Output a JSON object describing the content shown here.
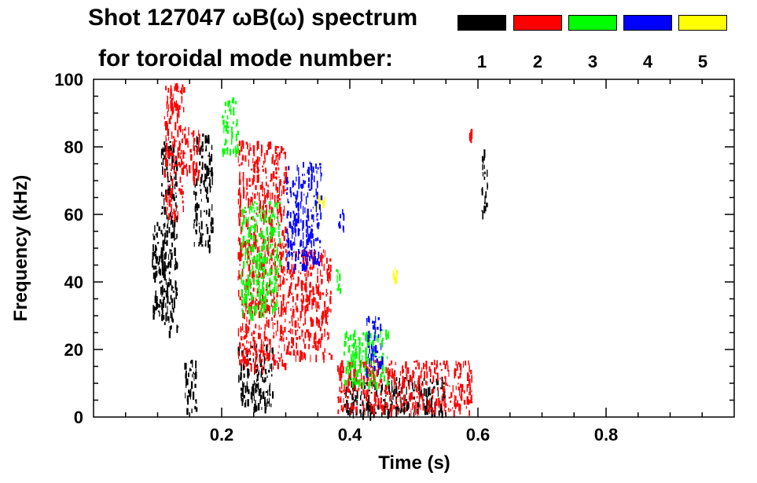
{
  "header": {
    "title_line1": "Shot 127047 ωB(ω) spectrum",
    "title_line2": "for toroidal mode number:"
  },
  "legend": [
    {
      "label": "1",
      "color": "#000000"
    },
    {
      "label": "2",
      "color": "#ff0000"
    },
    {
      "label": "3",
      "color": "#00ff00"
    },
    {
      "label": "4",
      "color": "#0000ff"
    },
    {
      "label": "5",
      "color": "#ffff00"
    }
  ],
  "chart_data": {
    "type": "heatmap",
    "title": "Shot 127047 ωB(ω) spectrum",
    "subtitle": "for toroidal mode number:",
    "xlabel": "Time (s)",
    "ylabel": "Frequency (kHz)",
    "xlim": [
      0.0,
      1.0
    ],
    "ylim": [
      0,
      100
    ],
    "x_ticks": [
      {
        "value": 0.2,
        "label": "0.2"
      },
      {
        "value": 0.4,
        "label": "0.4"
      },
      {
        "value": 0.6,
        "label": "0.6"
      },
      {
        "value": 0.8,
        "label": "0.8"
      }
    ],
    "y_ticks": [
      {
        "value": 0,
        "label": "0"
      },
      {
        "value": 20,
        "label": "20"
      },
      {
        "value": 40,
        "label": "40"
      },
      {
        "value": 60,
        "label": "60"
      },
      {
        "value": 80,
        "label": "80"
      },
      {
        "value": 100,
        "label": "100"
      }
    ],
    "grid": false,
    "legend_position": "top-right",
    "series": [
      {
        "name": "1",
        "color": "#000000",
        "regions": [
          {
            "t": [
              0.09,
              0.115
            ],
            "f": [
              30,
              58
            ]
          },
          {
            "t": [
              0.105,
              0.13
            ],
            "f": [
              25,
              82
            ]
          },
          {
            "t": [
              0.14,
              0.16
            ],
            "f": [
              2,
              18
            ]
          },
          {
            "t": [
              0.155,
              0.185
            ],
            "f": [
              50,
              84
            ]
          },
          {
            "t": [
              0.225,
              0.28
            ],
            "f": [
              3,
              22
            ]
          },
          {
            "t": [
              0.39,
              0.55
            ],
            "f": [
              1,
              12
            ]
          },
          {
            "t": [
              0.605,
              0.615
            ],
            "f": [
              60,
              80
            ]
          }
        ]
      },
      {
        "name": "2",
        "color": "#ff0000",
        "regions": [
          {
            "t": [
              0.11,
              0.14
            ],
            "f": [
              60,
              100
            ]
          },
          {
            "t": [
              0.14,
              0.165
            ],
            "f": [
              70,
              86
            ]
          },
          {
            "t": [
              0.225,
              0.3
            ],
            "f": [
              15,
              82
            ]
          },
          {
            "t": [
              0.3,
              0.37
            ],
            "f": [
              18,
              50
            ]
          },
          {
            "t": [
              0.38,
              0.59
            ],
            "f": [
              2,
              17
            ]
          },
          {
            "t": [
              0.585,
              0.59
            ],
            "f": [
              82,
              86
            ]
          }
        ]
      },
      {
        "name": "3",
        "color": "#00ff00",
        "regions": [
          {
            "t": [
              0.2,
              0.225
            ],
            "f": [
              78,
              95
            ]
          },
          {
            "t": [
              0.23,
              0.29
            ],
            "f": [
              30,
              64
            ]
          },
          {
            "t": [
              0.375,
              0.385
            ],
            "f": [
              38,
              44
            ]
          },
          {
            "t": [
              0.39,
              0.46
            ],
            "f": [
              10,
              26
            ]
          }
        ]
      },
      {
        "name": "4",
        "color": "#0000ff",
        "regions": [
          {
            "t": [
              0.3,
              0.355
            ],
            "f": [
              44,
              76
            ]
          },
          {
            "t": [
              0.38,
              0.39
            ],
            "f": [
              56,
              64
            ]
          },
          {
            "t": [
              0.425,
              0.45
            ],
            "f": [
              14,
              30
            ]
          }
        ]
      },
      {
        "name": "5",
        "color": "#ffff00",
        "regions": [
          {
            "t": [
              0.34,
              0.36
            ],
            "f": [
              63,
              66
            ]
          },
          {
            "t": [
              0.465,
              0.475
            ],
            "f": [
              40,
              45
            ]
          }
        ]
      }
    ]
  }
}
